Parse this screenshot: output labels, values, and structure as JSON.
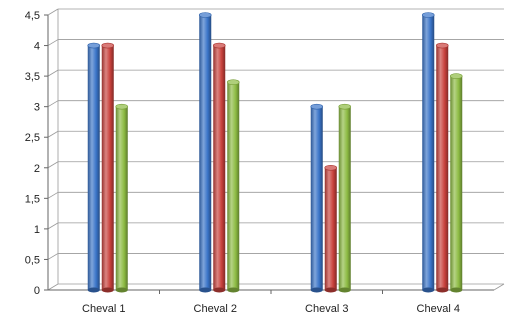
{
  "chart_data": {
    "type": "bar",
    "title": "",
    "xlabel": "",
    "ylabel": "",
    "categories": [
      "Cheval 1",
      "Cheval 2",
      "Cheval 3",
      "Cheval 4"
    ],
    "series": [
      {
        "values": [
          4,
          4.5,
          3,
          4.5
        ],
        "color": "#3a74c8"
      },
      {
        "values": [
          4,
          4,
          2,
          4
        ],
        "color": "#c8413c"
      },
      {
        "values": [
          3,
          3.4,
          3,
          3.5
        ],
        "color": "#8dbb43"
      }
    ],
    "ylim": [
      0,
      4.5
    ],
    "yticks": [
      "0",
      "0,5",
      "1",
      "1,5",
      "2",
      "2,5",
      "3",
      "3,5",
      "4",
      "4,5"
    ],
    "grid": true,
    "legend": "none",
    "style": "3d-cylinders"
  }
}
